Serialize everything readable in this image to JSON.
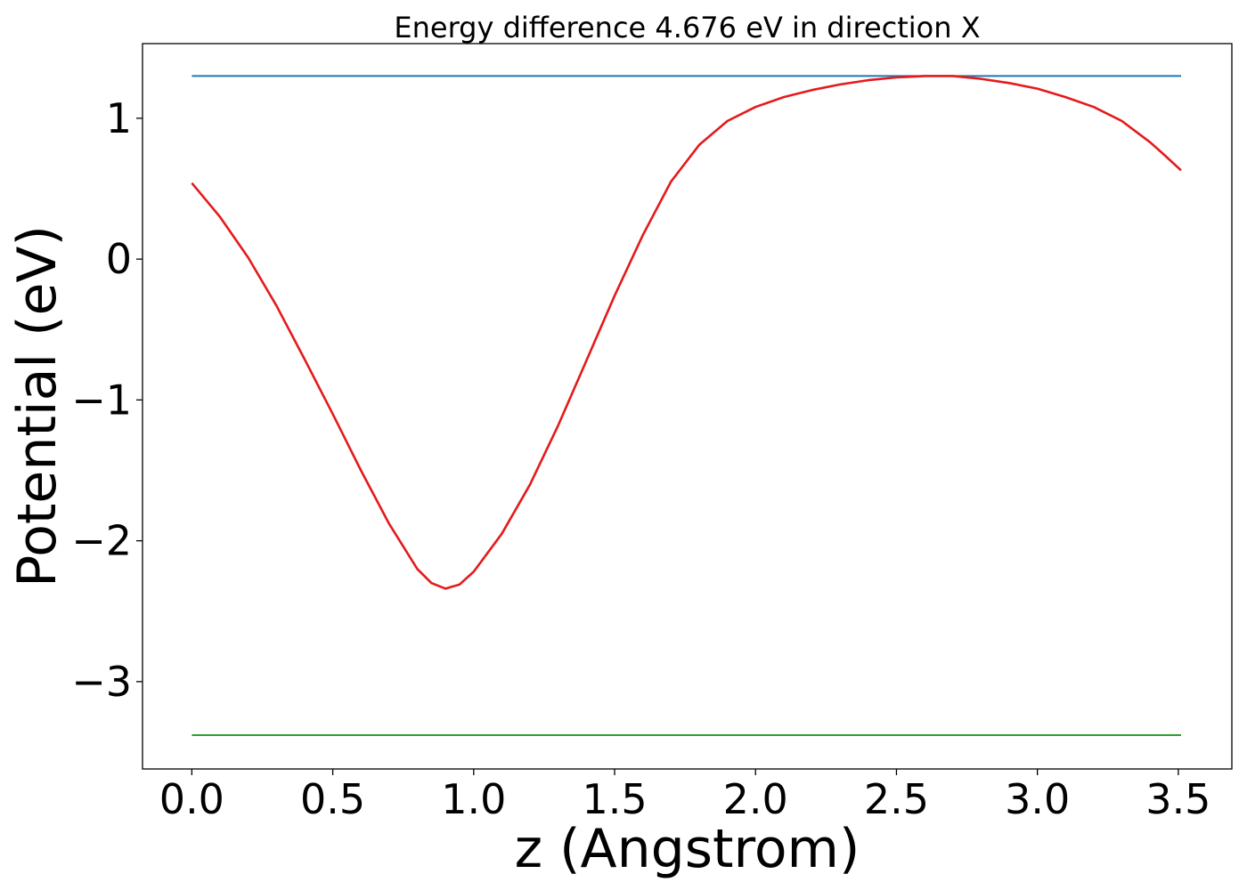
{
  "chart_data": {
    "type": "line",
    "title": "Energy difference 4.676 eV in direction X",
    "xlabel": "z (Angstrom)",
    "ylabel": "Potential (eV)",
    "xlim": [
      -0.175,
      3.69
    ],
    "ylim": [
      -3.62,
      1.53
    ],
    "grid": false,
    "legend": "none",
    "xticks": [
      0.0,
      0.5,
      1.0,
      1.5,
      2.0,
      2.5,
      3.0,
      3.5
    ],
    "xtick_labels": [
      "0.0",
      "0.5",
      "1.0",
      "1.5",
      "2.0",
      "2.5",
      "3.0",
      "3.5"
    ],
    "yticks": [
      1,
      0,
      -1,
      -2,
      -3
    ],
    "ytick_labels": [
      "1",
      "0",
      "−1",
      "−2",
      "−3"
    ],
    "series": [
      {
        "color": "#1f77b4",
        "x": [
          0.0,
          3.51
        ],
        "y": [
          1.3,
          1.3
        ]
      },
      {
        "color": "#2ca02c",
        "x": [
          0.0,
          3.51
        ],
        "y": [
          -3.38,
          -3.38
        ]
      },
      {
        "color": "#e41a1c",
        "x": [
          0.0,
          0.1,
          0.2,
          0.3,
          0.4,
          0.5,
          0.6,
          0.7,
          0.8,
          0.85,
          0.9,
          0.95,
          1.0,
          1.1,
          1.2,
          1.3,
          1.4,
          1.5,
          1.6,
          1.7,
          1.8,
          1.9,
          2.0,
          2.1,
          2.2,
          2.3,
          2.4,
          2.5,
          2.6,
          2.7,
          2.8,
          2.9,
          3.0,
          3.1,
          3.2,
          3.3,
          3.4,
          3.45,
          3.51
        ],
        "y": [
          0.54,
          0.3,
          0.01,
          -0.33,
          -0.71,
          -1.1,
          -1.5,
          -1.88,
          -2.2,
          -2.3,
          -2.34,
          -2.31,
          -2.22,
          -1.95,
          -1.6,
          -1.18,
          -0.72,
          -0.26,
          0.17,
          0.55,
          0.81,
          0.98,
          1.08,
          1.15,
          1.2,
          1.24,
          1.27,
          1.29,
          1.3,
          1.3,
          1.28,
          1.25,
          1.21,
          1.15,
          1.08,
          0.98,
          0.83,
          0.74,
          0.63
        ]
      }
    ]
  }
}
